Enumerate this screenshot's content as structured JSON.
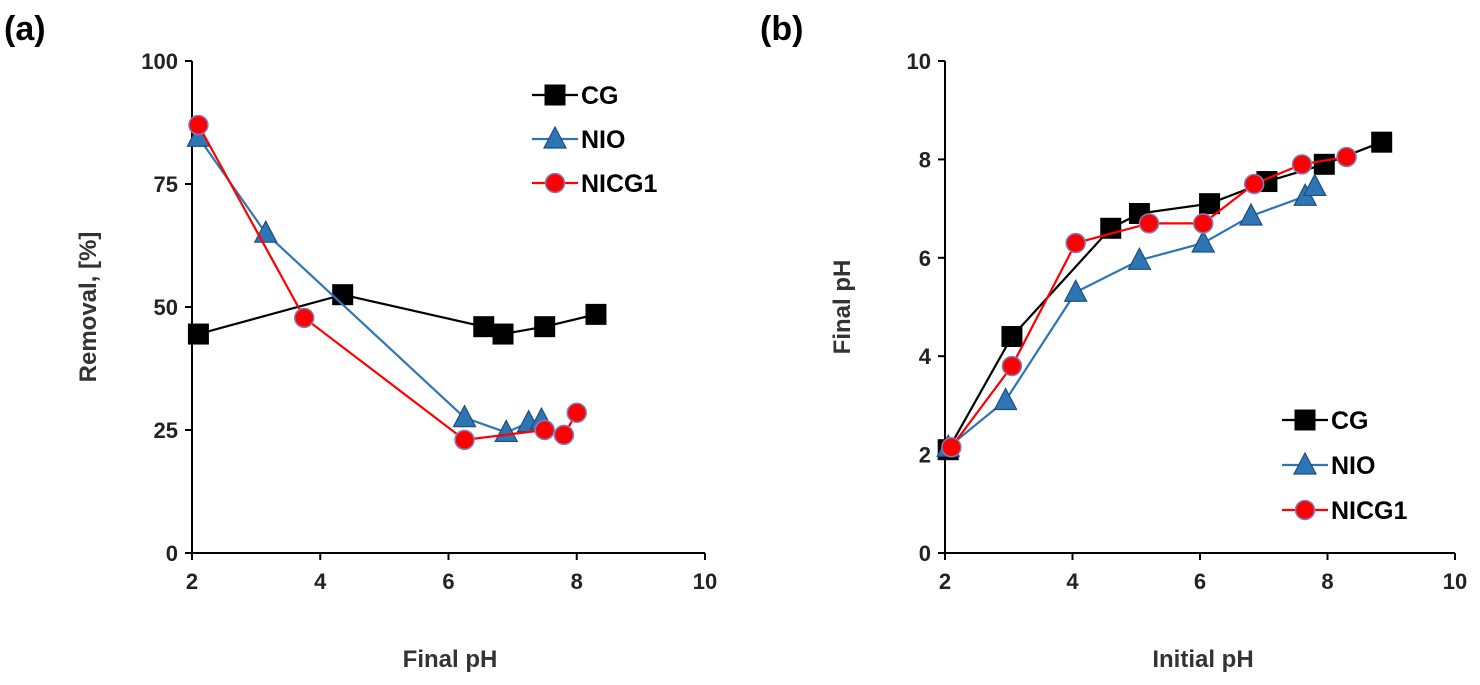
{
  "colors": {
    "CG": "#000000",
    "NIO": "#2E75B6",
    "NICG1": "#FF0000",
    "marker_edge_nicg1": "#7F7FBF"
  },
  "chart_data": [
    {
      "id": "a",
      "panel_label": "(a)",
      "type": "line",
      "xlabel": "Final pH",
      "ylabel": "Removal, [%]",
      "xlim": [
        2,
        10
      ],
      "ylim": [
        0,
        100
      ],
      "xticks": [
        "2",
        "4",
        "6",
        "8",
        "10"
      ],
      "yticks": [
        "0",
        "25",
        "50",
        "75",
        "100"
      ],
      "legend_position": "top-right",
      "series": [
        {
          "name": "CG",
          "marker": "square",
          "x": [
            2.1,
            4.35,
            6.55,
            6.85,
            7.5,
            8.3
          ],
          "y": [
            44.5,
            52.5,
            46,
            44.5,
            46,
            48.5
          ]
        },
        {
          "name": "NIO",
          "marker": "triangle",
          "x": [
            2.1,
            3.15,
            6.25,
            6.9,
            7.25,
            7.45
          ],
          "y": [
            84.5,
            65,
            27.5,
            24.5,
            26.5,
            27
          ]
        },
        {
          "name": "NICG1",
          "marker": "circle",
          "x": [
            2.1,
            3.75,
            6.25,
            7.5,
            7.8,
            8.0
          ],
          "y": [
            87,
            47.8,
            23,
            25,
            24,
            28.5
          ]
        }
      ]
    },
    {
      "id": "b",
      "panel_label": "(b)",
      "type": "line",
      "xlabel": "Initial pH",
      "ylabel": "Final pH",
      "xlim": [
        2,
        10
      ],
      "ylim": [
        0,
        10
      ],
      "xticks": [
        "2",
        "4",
        "6",
        "8",
        "10"
      ],
      "yticks": [
        "0",
        "2",
        "4",
        "6",
        "8",
        "10"
      ],
      "legend_position": "bottom-right",
      "series": [
        {
          "name": "CG",
          "marker": "square",
          "x": [
            2.05,
            3.05,
            4.6,
            5.05,
            6.15,
            7.05,
            7.95,
            8.85
          ],
          "y": [
            2.1,
            4.4,
            6.6,
            6.9,
            7.1,
            7.55,
            7.9,
            8.35
          ]
        },
        {
          "name": "NIO",
          "marker": "triangle",
          "x": [
            2.05,
            2.95,
            4.05,
            5.05,
            6.05,
            6.8,
            7.65,
            7.8
          ],
          "y": [
            2.15,
            3.1,
            5.3,
            5.95,
            6.3,
            6.85,
            7.25,
            7.45
          ]
        },
        {
          "name": "NICG1",
          "marker": "circle",
          "x": [
            2.1,
            3.05,
            4.05,
            5.2,
            6.05,
            6.85,
            7.6,
            8.3
          ],
          "y": [
            2.15,
            3.8,
            6.3,
            6.7,
            6.7,
            7.5,
            7.9,
            8.05
          ]
        }
      ]
    }
  ]
}
